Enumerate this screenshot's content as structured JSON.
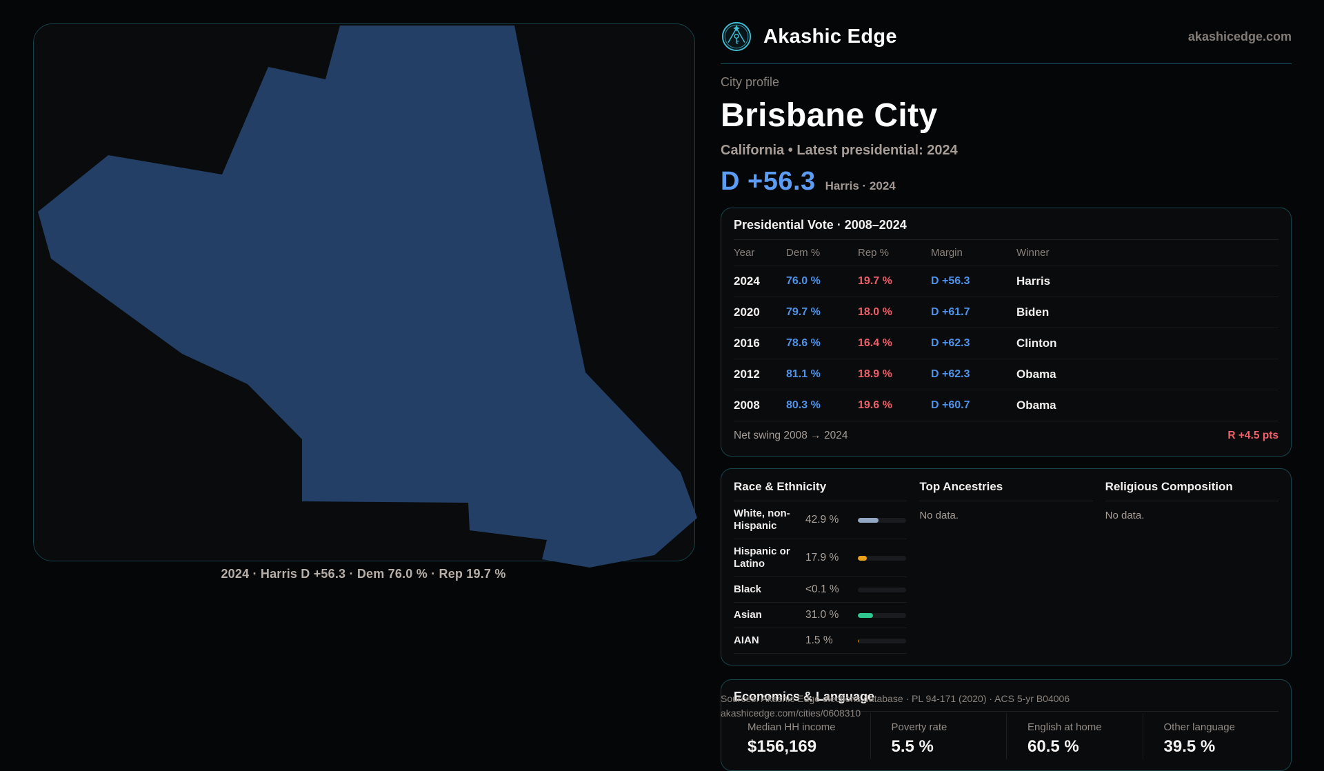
{
  "brand": {
    "name": "Akashic Edge",
    "domain": "akashicedge.com"
  },
  "profile": {
    "eyebrow": "City profile",
    "title": "Brisbane City",
    "subtitle": "California • Latest presidential: 2024",
    "headline_margin": "D +56.3",
    "headline_note": "Harris · 2024"
  },
  "map": {
    "caption": "2024 · Harris D +56.3 · Dem 76.0 % · Rep 19.7 %",
    "shape_color": "#233f66"
  },
  "vote_table": {
    "title": "Presidential Vote · 2008–2024",
    "columns": [
      "Year",
      "Dem %",
      "Rep %",
      "Margin",
      "Winner"
    ],
    "rows": [
      {
        "year": "2024",
        "dem": "76.0 %",
        "rep": "19.7 %",
        "margin": "D +56.3",
        "winner": "Harris"
      },
      {
        "year": "2020",
        "dem": "79.7 %",
        "rep": "18.0 %",
        "margin": "D +61.7",
        "winner": "Biden"
      },
      {
        "year": "2016",
        "dem": "78.6 %",
        "rep": "16.4 %",
        "margin": "D +62.3",
        "winner": "Clinton"
      },
      {
        "year": "2012",
        "dem": "81.1 %",
        "rep": "18.9 %",
        "margin": "D +62.3",
        "winner": "Obama"
      },
      {
        "year": "2008",
        "dem": "80.3 %",
        "rep": "19.6 %",
        "margin": "D +60.7",
        "winner": "Obama"
      }
    ],
    "net_swing_label": "Net swing 2008 → 2024",
    "net_swing_value": "R +4.5 pts"
  },
  "race": {
    "title": "Race & Ethnicity",
    "rows": [
      {
        "label": "White, non-Hispanic",
        "value": "42.9 %",
        "pct": 42.9,
        "color": "#93a7c4"
      },
      {
        "label": "Hispanic or Latino",
        "value": "17.9 %",
        "pct": 17.9,
        "color": "#e9a21a"
      },
      {
        "label": "Black",
        "value": "<0.1 %",
        "pct": 0,
        "color": "#e9a21a"
      },
      {
        "label": "Asian",
        "value": "31.0 %",
        "pct": 31.0,
        "color": "#2fc78f"
      },
      {
        "label": "AIAN",
        "value": "1.5 %",
        "pct": 1.5,
        "color": "#e9a21a"
      }
    ]
  },
  "ancestries": {
    "title": "Top Ancestries",
    "empty": "No data."
  },
  "religion": {
    "title": "Religious Composition",
    "empty": "No data."
  },
  "economics": {
    "title": "Economics & Language",
    "stats": [
      {
        "label": "Median HH income",
        "value": "$156,169"
      },
      {
        "label": "Poverty rate",
        "value": "5.5 %"
      },
      {
        "label": "English at home",
        "value": "60.5 %"
      },
      {
        "label": "Other language",
        "value": "39.5 %"
      }
    ]
  },
  "footer": {
    "line1": "Sources: Akashic Edge elections database · PL 94-171 (2020) · ACS 5-yr B04006",
    "line2": "akashicedge.com/cities/0608310"
  },
  "colors": {
    "accent_teal": "#3fbdd3",
    "dem_blue": "#4f93ea",
    "headline_blue": "#5b9cf4",
    "rep_red": "#ee5f68",
    "swing_red": "#f2606a",
    "map_navy": "#233f66",
    "card_border": "#17454e"
  }
}
